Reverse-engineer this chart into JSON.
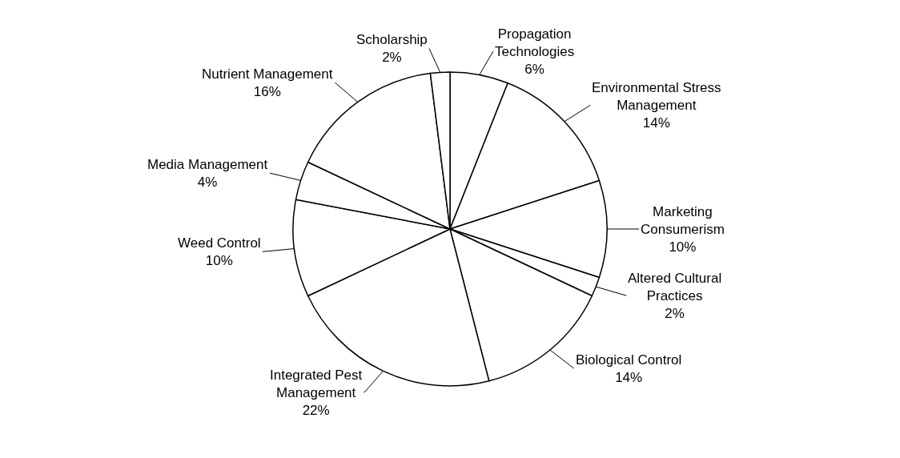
{
  "chart_data": {
    "type": "pie",
    "categories": [
      "Propagation Technologies",
      "Environmental Stress Management",
      "Marketing Consumerism",
      "Altered Cultural Practices",
      "Biological Control",
      "Integrated Pest Management",
      "Weed Control",
      "Media Management",
      "Nutrient Management",
      "Scholarship"
    ],
    "values": [
      6,
      14,
      10,
      2,
      14,
      22,
      10,
      4,
      16,
      2
    ],
    "value_labels": [
      "6%",
      "14%",
      "10%",
      "2%",
      "14%",
      "22%",
      "10%",
      "4%",
      "16%",
      "2%"
    ],
    "colors": [
      "#ffffff",
      "#ffffff",
      "#ffffff",
      "#ffffff",
      "#ffffff",
      "#ffffff",
      "#ffffff",
      "#ffffff",
      "#ffffff",
      "#ffffff"
    ],
    "legend": false
  }
}
